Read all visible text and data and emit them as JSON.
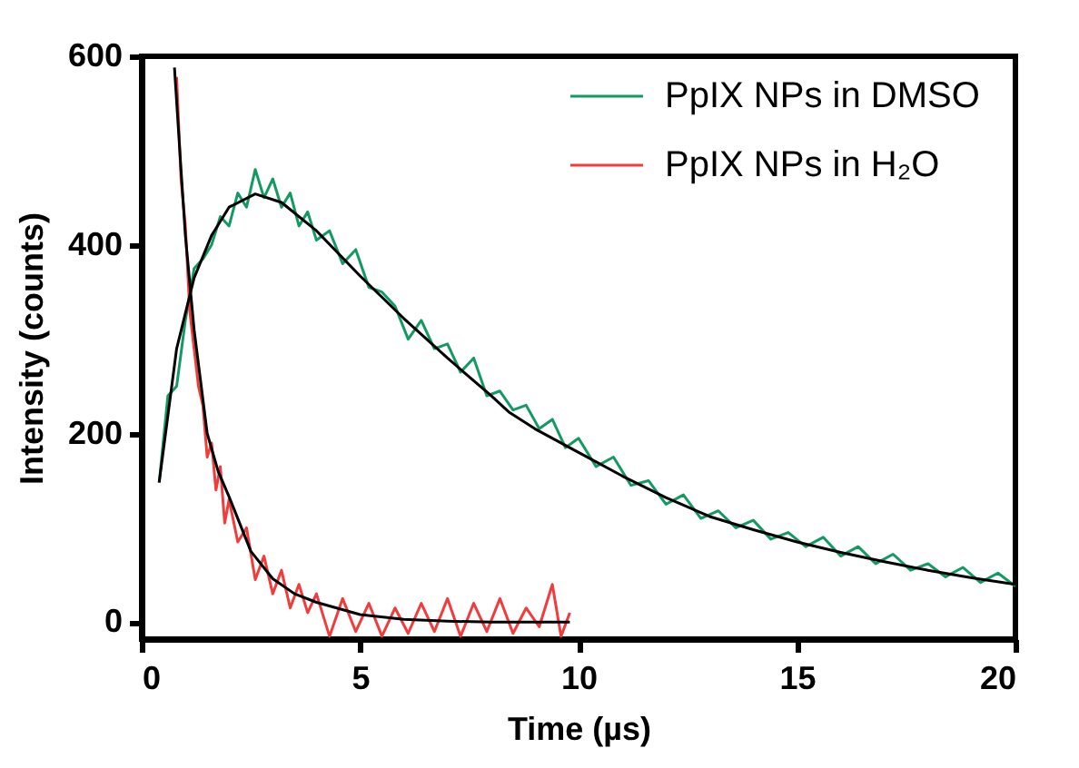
{
  "chart_data": {
    "type": "line",
    "xlabel": "Time (µs)",
    "ylabel": "Intensity (counts)",
    "xlim": [
      0,
      20
    ],
    "xticks": [
      0,
      5,
      10,
      15,
      20
    ],
    "ylim": [
      -18,
      600
    ],
    "yticks": [
      0,
      200,
      400,
      600
    ],
    "grid": false,
    "legend": "top right",
    "marker": "none",
    "line_style": "solid",
    "series": [
      {
        "name": "PpIX NPs in DMSO",
        "color": "#139a63",
        "x": [
          0.4,
          0.6,
          0.8,
          1.0,
          1.2,
          1.4,
          1.6,
          1.8,
          2.0,
          2.2,
          2.4,
          2.6,
          2.8,
          3.0,
          3.2,
          3.4,
          3.6,
          3.8,
          4.0,
          4.3,
          4.6,
          4.9,
          5.2,
          5.5,
          5.8,
          6.1,
          6.4,
          6.7,
          7.0,
          7.3,
          7.6,
          7.9,
          8.2,
          8.5,
          8.8,
          9.1,
          9.4,
          9.7,
          10.0,
          10.4,
          10.8,
          11.2,
          11.6,
          12.0,
          12.4,
          12.8,
          13.2,
          13.6,
          14.0,
          14.4,
          14.8,
          15.2,
          15.6,
          16.0,
          16.4,
          16.8,
          17.2,
          17.6,
          18.0,
          18.4,
          18.8,
          19.2,
          19.6,
          20.0
        ],
        "values": [
          148,
          240,
          250,
          320,
          375,
          385,
          400,
          430,
          420,
          455,
          440,
          480,
          450,
          470,
          440,
          455,
          420,
          435,
          405,
          415,
          380,
          395,
          355,
          350,
          335,
          300,
          320,
          290,
          295,
          265,
          280,
          240,
          245,
          225,
          230,
          205,
          215,
          185,
          195,
          165,
          175,
          145,
          150,
          125,
          135,
          110,
          118,
          100,
          108,
          88,
          95,
          80,
          90,
          70,
          80,
          62,
          72,
          55,
          62,
          48,
          58,
          42,
          52,
          38
        ]
      },
      {
        "name": "PpIX NPs in H₂O",
        "color": "#f23b3b",
        "x": [
          0.8,
          0.9,
          1.0,
          1.1,
          1.2,
          1.3,
          1.4,
          1.5,
          1.6,
          1.7,
          1.8,
          1.9,
          2.0,
          2.2,
          2.4,
          2.6,
          2.8,
          3.0,
          3.2,
          3.4,
          3.6,
          3.8,
          4.0,
          4.3,
          4.6,
          4.9,
          5.2,
          5.5,
          5.8,
          6.1,
          6.4,
          6.7,
          7.0,
          7.3,
          7.6,
          7.9,
          8.2,
          8.5,
          8.8,
          9.1,
          9.4,
          9.6,
          9.8
        ],
        "values": [
          578,
          470,
          420,
          330,
          290,
          250,
          230,
          175,
          190,
          140,
          165,
          105,
          130,
          85,
          100,
          45,
          70,
          30,
          55,
          15,
          40,
          10,
          30,
          -15,
          25,
          -10,
          20,
          -15,
          15,
          -12,
          20,
          -10,
          25,
          -15,
          20,
          -10,
          25,
          -12,
          15,
          -5,
          40,
          -15,
          10
        ]
      },
      {
        "color": "#000000",
        "x": [
          0.4,
          0.8,
          1.2,
          1.6,
          2.0,
          2.6,
          3.2,
          4.0,
          5,
          6,
          7,
          8,
          8.4,
          9,
          10,
          11,
          12,
          13,
          14,
          15,
          16,
          17,
          18,
          19,
          20
        ],
        "values": [
          148,
          290,
          365,
          410,
          440,
          454,
          445,
          415,
          367,
          322,
          280,
          240,
          223,
          205,
          180,
          155,
          132,
          112,
          98,
          85,
          74,
          64,
          55,
          47,
          40
        ]
      },
      {
        "color": "#000000",
        "x": [
          0.75,
          0.9,
          1.0,
          1.2,
          1.5,
          1.75,
          2,
          2.5,
          3,
          3.5,
          4,
          5,
          6,
          7,
          8,
          9.8
        ],
        "values": [
          588,
          480,
          410,
          310,
          200,
          160,
          133,
          75,
          46,
          30,
          21,
          8,
          3,
          1,
          0,
          0
        ]
      }
    ]
  }
}
